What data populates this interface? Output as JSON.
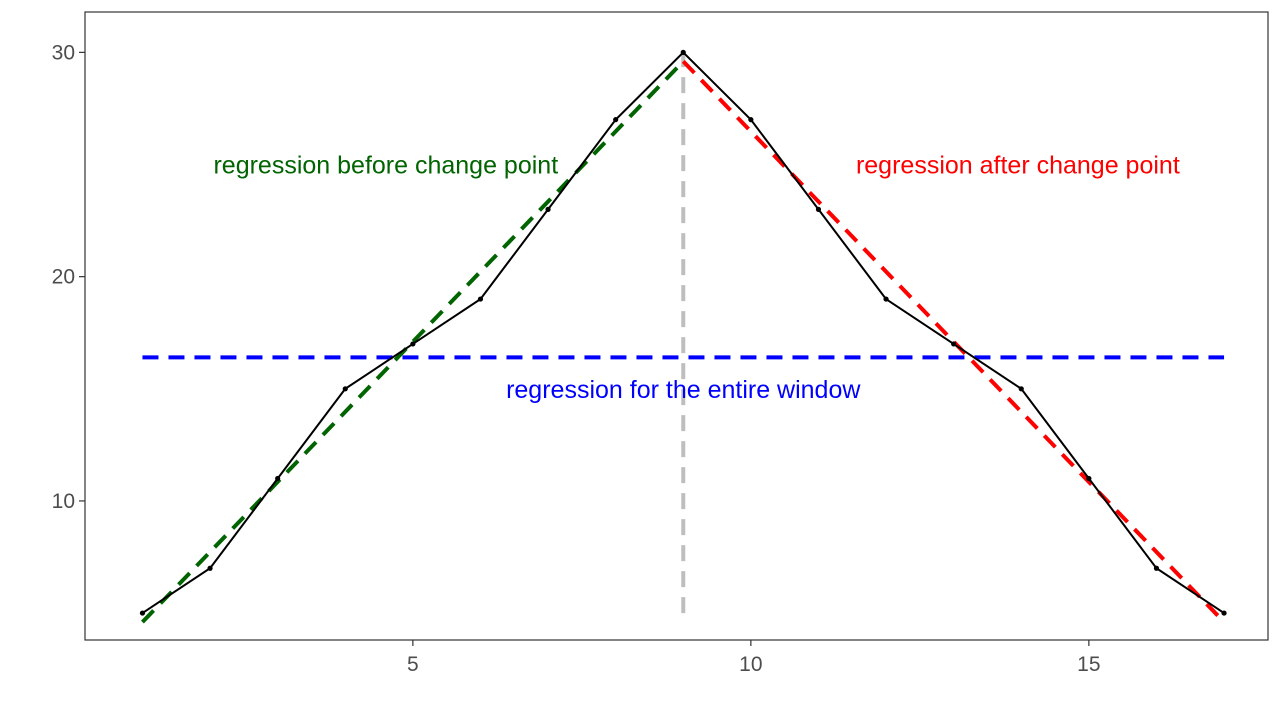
{
  "chart_data": {
    "type": "line",
    "title": "",
    "xlabel": "",
    "ylabel": "",
    "xlim": [
      0.15,
      17.65
    ],
    "ylim": [
      3.8,
      31.8
    ],
    "x_ticks": [
      5,
      10,
      15
    ],
    "y_ticks": [
      10,
      20,
      30
    ],
    "grid": false,
    "legend": "none",
    "series": [
      {
        "x": [
          1,
          2,
          3,
          4,
          5,
          6,
          7,
          8,
          9,
          10,
          11,
          12,
          13,
          14,
          15,
          16,
          17
        ],
        "y": [
          5,
          7,
          11,
          15,
          17,
          19,
          23,
          27,
          30,
          27,
          23,
          19,
          17,
          15,
          11,
          7,
          5
        ],
        "color": "#000000",
        "markers": true
      }
    ],
    "regression_lines": [
      {
        "x": [
          1,
          9
        ],
        "y": [
          4.6,
          29.6
        ],
        "color": "#006400",
        "style": "dashed"
      },
      {
        "x": [
          9,
          17
        ],
        "y": [
          29.6,
          4.6
        ],
        "color": "#ff0000",
        "style": "dashed"
      },
      {
        "x": [
          1,
          17
        ],
        "y": [
          16.4,
          16.4
        ],
        "color": "#0000ff",
        "style": "dashed"
      }
    ],
    "change_point": {
      "x": 9,
      "y_range": [
        5,
        30.5
      ],
      "color": "#bebebe",
      "style": "dashed"
    },
    "annotations": [
      {
        "text": "regression before change point",
        "x": 4.6,
        "y": 25,
        "color": "#006400"
      },
      {
        "text": "regression after change point",
        "x": 13.95,
        "y": 25,
        "color": "#ff0000"
      },
      {
        "text": "regression for the entire window",
        "x": 9,
        "y": 15,
        "color": "#0000ff"
      }
    ]
  }
}
